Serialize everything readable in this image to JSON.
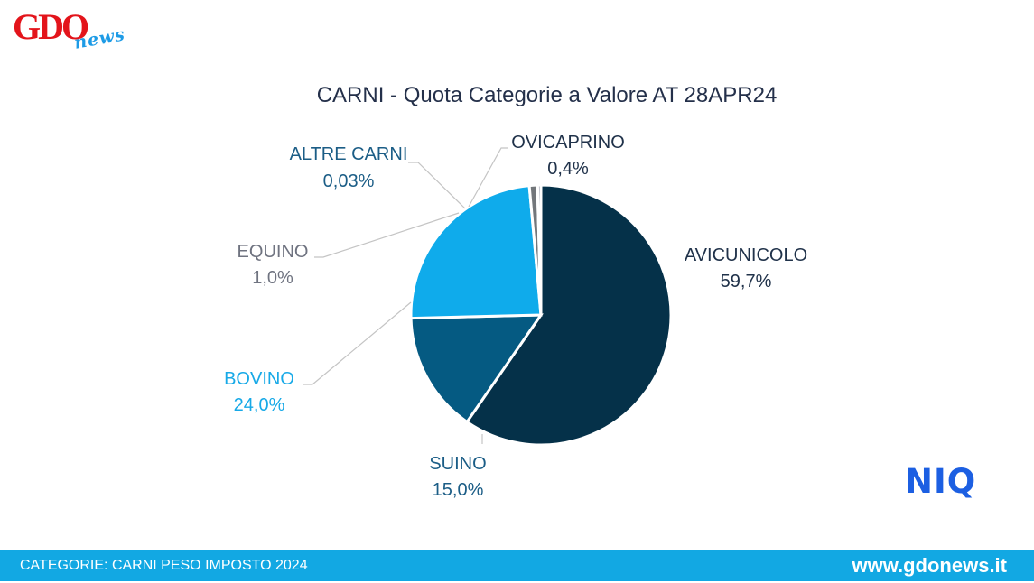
{
  "logo": {
    "main": "GDO",
    "script": "news"
  },
  "brand_badge": "NIQ",
  "footer": {
    "left": "CATEGORIE: CARNI PESO IMPOSTO 2024",
    "right": "www.gdonews.it"
  },
  "chart_data": {
    "type": "pie",
    "title": "CARNI - Quota Categorie a Valore AT 28APR24",
    "slices": [
      {
        "name": "AVICUNICOLO",
        "value": 59.7,
        "label": "59,7%",
        "color": "#053149"
      },
      {
        "name": "SUINO",
        "value": 15.0,
        "label": "15,0%",
        "color": "#055a82"
      },
      {
        "name": "BOVINO",
        "value": 24.0,
        "label": "24,0%",
        "color": "#0fabeb"
      },
      {
        "name": "EQUINO",
        "value": 1.0,
        "label": "1,0%",
        "color": "#73777b"
      },
      {
        "name": "ALTRE CARNI",
        "value": 0.03,
        "label": "0,03%",
        "color": "#f2f2f2"
      },
      {
        "name": "OVICAPRINO",
        "value": 0.4,
        "label": "0,4%",
        "color": "#8b8fa0"
      }
    ],
    "label_colors": {
      "AVICUNICOLO": "#20324a",
      "SUINO": "#1b5d86",
      "BOVINO": "#17a9e7",
      "EQUINO": "#6f7380",
      "ALTRE CARNI": "#1b5d86",
      "OVICAPRINO": "#20324a"
    }
  }
}
